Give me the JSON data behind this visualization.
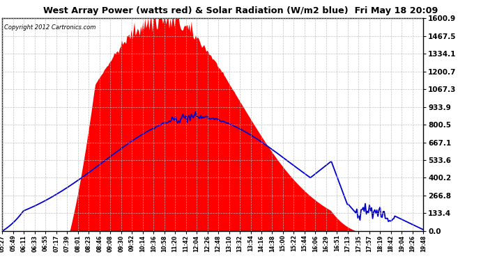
{
  "title": "West Array Power (watts red) & Solar Radiation (W/m2 blue)  Fri May 18 20:09",
  "copyright": "Copyright 2012 Cartronics.com",
  "ymin": 0.0,
  "ymax": 1600.9,
  "yticks": [
    0.0,
    133.4,
    266.8,
    400.2,
    533.6,
    667.1,
    800.5,
    933.9,
    1067.3,
    1200.7,
    1334.1,
    1467.5,
    1600.9
  ],
  "background_color": "#ffffff",
  "grid_color": "#bbbbbb",
  "fill_color": "#ff0000",
  "line_color": "#0000cc",
  "x_labels": [
    "05:27",
    "05:49",
    "06:11",
    "06:33",
    "06:55",
    "07:17",
    "07:39",
    "08:01",
    "08:23",
    "08:46",
    "09:08",
    "09:30",
    "09:52",
    "10:14",
    "10:36",
    "10:58",
    "11:20",
    "11:42",
    "12:04",
    "12:26",
    "12:48",
    "13:10",
    "13:32",
    "13:54",
    "14:16",
    "14:38",
    "15:00",
    "15:22",
    "15:44",
    "16:06",
    "16:29",
    "16:51",
    "17:13",
    "17:35",
    "17:57",
    "18:19",
    "18:42",
    "19:04",
    "19:26",
    "19:48"
  ],
  "n_points": 400
}
